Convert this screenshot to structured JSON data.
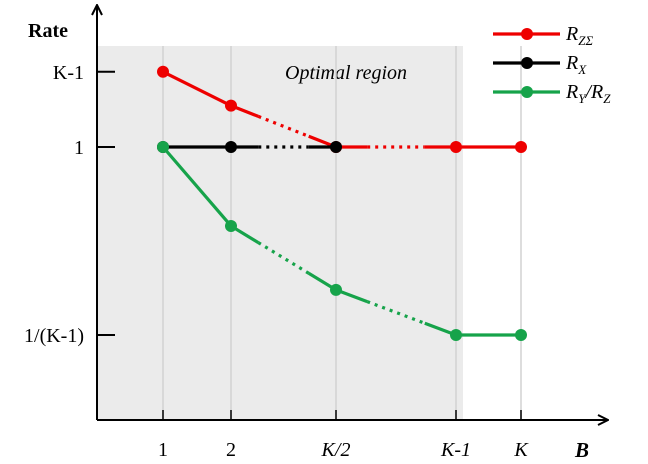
{
  "chart_data": {
    "type": "line",
    "ylabel": "Rate",
    "xlabel": "B",
    "region_label": "Optimal region",
    "x_ticks": [
      "1",
      "2",
      "K/2",
      "K-1",
      "K"
    ],
    "y_ticks": [
      "1/(K-1)",
      "1",
      "K-1"
    ],
    "y_values": {
      "1/(K-1)": 0.0,
      "1": 0.5,
      "K-1": 0.7
    },
    "region_color": "#ebebeb",
    "series": [
      {
        "name": "R_ZΣ",
        "color": "#ee0000",
        "points": [
          [
            "1",
            0.7
          ],
          [
            "2",
            0.61
          ],
          [
            "K/2",
            0.5
          ],
          [
            "K-1",
            0.5
          ],
          [
            "K",
            0.5
          ]
        ]
      },
      {
        "name": "R_X",
        "color": "#000000",
        "points": [
          [
            "1",
            0.5
          ],
          [
            "2",
            0.5
          ],
          [
            "K/2",
            0.5
          ]
        ]
      },
      {
        "name": "R_Y/R_Z",
        "color": "#16a34a",
        "points": [
          [
            "1",
            0.5
          ],
          [
            "2",
            0.29
          ],
          [
            "K/2",
            0.12
          ],
          [
            "K-1",
            0.0
          ],
          [
            "K",
            0.0
          ]
        ]
      }
    ],
    "legend": [
      {
        "label_main": "R",
        "label_sub": "ZΣ",
        "label_rest": "",
        "color": "#ee0000"
      },
      {
        "label_main": "R",
        "label_sub": "X",
        "label_rest": "",
        "color": "#000000"
      },
      {
        "label_main": "R",
        "label_sub": "Y",
        "label_rest": "/R",
        "label_sub2": "Z",
        "color": "#16a34a"
      }
    ]
  }
}
